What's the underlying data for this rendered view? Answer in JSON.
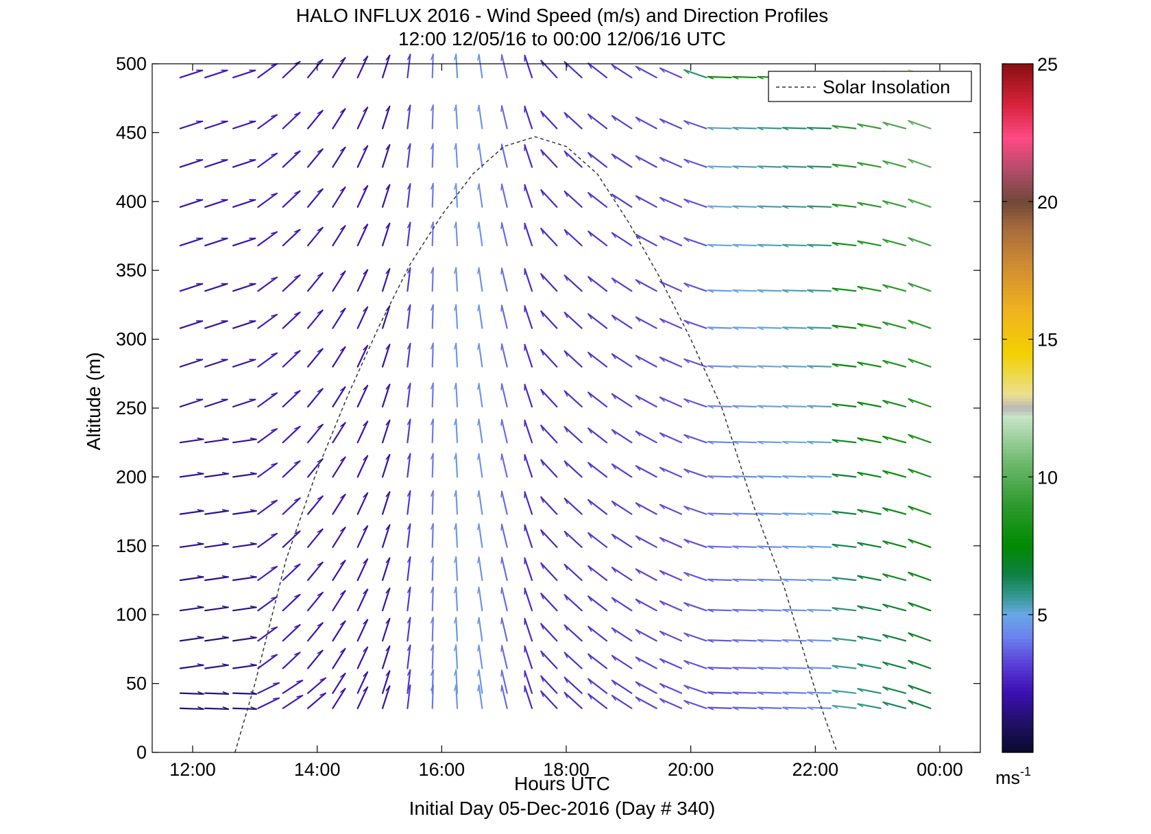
{
  "chart_data": {
    "type": "quiver",
    "title": "HALO INFLUX 2016 - Wind Speed (m/s) and Direction Profiles",
    "subtitle": "12:00 12/05/16 to 00:00 12/06/16  UTC",
    "xlabel": "Hours UTC",
    "ylabel": "Altitude (m)",
    "footer": "Initial Day 05-Dec-2016 (Day # 340)",
    "legend": {
      "label": "Solar Insolation",
      "placement": "top-right"
    },
    "x_ticks": [
      "12:00",
      "14:00",
      "16:00",
      "18:00",
      "20:00",
      "22:00",
      "00:00"
    ],
    "x_tick_hours": [
      12,
      14,
      16,
      18,
      20,
      22,
      24
    ],
    "xlim": [
      11.35,
      24.65
    ],
    "y_ticks": [
      "0",
      "50",
      "100",
      "150",
      "200",
      "250",
      "300",
      "350",
      "400",
      "450",
      "500"
    ],
    "y_tick_values": [
      0,
      50,
      100,
      150,
      200,
      250,
      300,
      350,
      400,
      450,
      500
    ],
    "ylim": [
      0,
      500
    ],
    "grid": false,
    "colorbar": {
      "ticks": [
        "5",
        "10",
        "15",
        "20",
        "25"
      ],
      "tick_values": [
        5,
        10,
        15,
        20,
        25
      ],
      "range": [
        0,
        25
      ],
      "unit": "ms",
      "unit_exp": "-1",
      "stops": [
        {
          "v": 0.0,
          "c": "#0a0a2e"
        },
        {
          "v": 1.0,
          "c": "#1e1060"
        },
        {
          "v": 2.2,
          "c": "#3c10b4"
        },
        {
          "v": 3.2,
          "c": "#5a3ed6"
        },
        {
          "v": 4.2,
          "c": "#6a82ee"
        },
        {
          "v": 5.0,
          "c": "#6aa8e6"
        },
        {
          "v": 5.6,
          "c": "#3a9a9a"
        },
        {
          "v": 6.5,
          "c": "#0e8040"
        },
        {
          "v": 7.5,
          "c": "#008a00"
        },
        {
          "v": 9.0,
          "c": "#2e9a2e"
        },
        {
          "v": 10.5,
          "c": "#6cb86c"
        },
        {
          "v": 12.2,
          "c": "#c8e4c8"
        },
        {
          "v": 12.5,
          "c": "#b8b8b8"
        },
        {
          "v": 13.0,
          "c": "#ece090"
        },
        {
          "v": 14.5,
          "c": "#f2d000"
        },
        {
          "v": 16.0,
          "c": "#f0b41e"
        },
        {
          "v": 17.5,
          "c": "#d49030"
        },
        {
          "v": 19.0,
          "c": "#a86c3c"
        },
        {
          "v": 20.0,
          "c": "#704838"
        },
        {
          "v": 21.0,
          "c": "#a84c64"
        },
        {
          "v": 22.3,
          "c": "#ff4a86"
        },
        {
          "v": 23.5,
          "c": "#d8243c"
        },
        {
          "v": 25.0,
          "c": "#8a0f10"
        }
      ]
    },
    "solar_insolation": {
      "hours": [
        12.68,
        13.0,
        13.5,
        14.0,
        14.5,
        15.0,
        15.5,
        16.0,
        16.5,
        17.0,
        17.5,
        18.0,
        18.5,
        19.0,
        19.5,
        20.0,
        20.5,
        21.0,
        21.5,
        22.0,
        22.35
      ],
      "altitude": [
        0,
        50,
        140,
        205,
        260,
        310,
        355,
        390,
        420,
        440,
        447,
        440,
        420,
        385,
        345,
        300,
        250,
        180,
        120,
        45,
        0
      ]
    },
    "columns": [
      {
        "h": 11.8,
        "d": "N"
      },
      {
        "h": 12.2,
        "d": "N"
      },
      {
        "h": 12.6,
        "d": "N"
      },
      {
        "h": 13.0,
        "d": "N"
      },
      {
        "h": 13.4,
        "d": "N"
      },
      {
        "h": 13.8,
        "d": "N"
      },
      {
        "h": 14.2,
        "d": "N"
      },
      {
        "h": 14.6,
        "d": "N"
      },
      {
        "h": 15.0,
        "d": "N"
      },
      {
        "h": 15.4,
        "d": "N"
      },
      {
        "h": 15.8,
        "d": "N"
      },
      {
        "h": 16.2,
        "d": "N"
      },
      {
        "h": 16.6,
        "d": "N"
      },
      {
        "h": 17.0,
        "d": "N"
      },
      {
        "h": 17.4,
        "d": "N"
      },
      {
        "h": 17.8,
        "d": "N"
      },
      {
        "h": 18.2,
        "d": "N"
      },
      {
        "h": 18.6,
        "d": "N"
      },
      {
        "h": 19.0,
        "d": "N"
      },
      {
        "h": 19.4,
        "d": "N"
      },
      {
        "h": 19.8,
        "d": "N"
      },
      {
        "h": 20.2,
        "d": "N"
      },
      {
        "h": 20.6,
        "d": "N"
      },
      {
        "h": 21.0,
        "d": "N"
      },
      {
        "h": 21.4,
        "d": "N"
      },
      {
        "h": 21.8,
        "d": "N"
      },
      {
        "h": 22.2,
        "d": "N"
      },
      {
        "h": 22.6,
        "d": "N"
      },
      {
        "h": 23.0,
        "d": "N"
      },
      {
        "h": 23.4,
        "d": "N"
      },
      {
        "h": 23.8,
        "d": "N"
      },
      {
        "h": 24.0,
        "d": "N"
      }
    ],
    "altitudes": [
      32,
      43,
      61,
      81,
      103,
      125,
      149,
      173,
      200,
      225,
      251,
      280,
      308,
      335,
      368,
      396,
      425,
      453,
      490
    ],
    "vector_field": {
      "start_hour_cols": [
        [
          11.8,
          12.2,
          12.65
        ],
        [
          13.05,
          13.45,
          13.85,
          14.25,
          14.65,
          15.05,
          15.45,
          15.85,
          16.25,
          16.65,
          17.05,
          17.45,
          17.85,
          18.25,
          18.65,
          19.05,
          19.45,
          19.85,
          20.25,
          20.65,
          21.05,
          21.45,
          21.85,
          22.25,
          22.65,
          23.05,
          23.45,
          23.85,
          24.0
        ]
      ]
    }
  }
}
